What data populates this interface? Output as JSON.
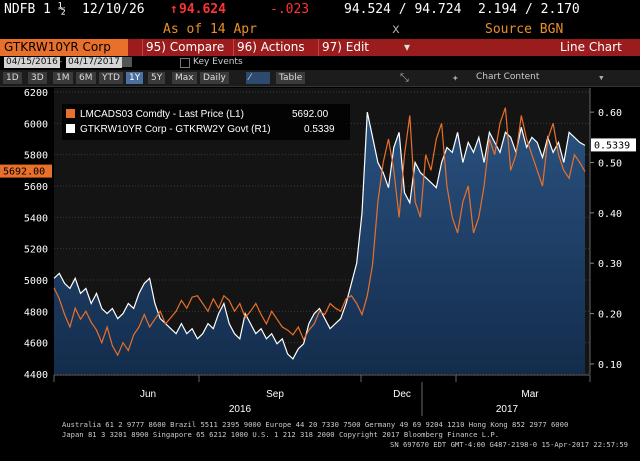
{
  "header": {
    "ticker": "NDFB 1",
    "fraction": "½",
    "date": "12/10/26",
    "arrow_glyph": "↑",
    "last_price": "94.624",
    "change": "-.023",
    "as_of": "As of 14 Apr",
    "bid_ask": "94.524 / 94.724",
    "x_label": "x",
    "yield_pair": "2.194 / 2.170",
    "source": "Source BGN"
  },
  "toolbar": {
    "security": "GTKRW10YR Corp",
    "compare": "95) Compare",
    "actions": "96) Actions",
    "edit": "97) Edit",
    "chart_type": "Line Chart"
  },
  "date_range": {
    "start": "04/15/2016",
    "end": "04/17/2017",
    "key_events": "Key Events"
  },
  "period_buttons": [
    "1D",
    "3D",
    "1M",
    "6M",
    "YTD",
    "1Y",
    "5Y",
    "Max"
  ],
  "selected_period": "1Y",
  "frequency": "Daily",
  "table_label": "Table",
  "chart_content_label": "Chart Content",
  "chart_data": {
    "type": "line",
    "x_start": "2016-04-15",
    "x_end": "2017-04-17",
    "series": [
      {
        "name": "LMCADS03 Comdty - Last Price (L1)",
        "axis": "left",
        "color": "#e8702a",
        "last_value": "5692.00",
        "values": [
          4950,
          4880,
          4780,
          4700,
          4820,
          4750,
          4800,
          4730,
          4680,
          4600,
          4700,
          4580,
          4520,
          4600,
          4550,
          4650,
          4700,
          4780,
          4700,
          4750,
          4800,
          4720,
          4760,
          4800,
          4870,
          4820,
          4890,
          4900,
          4850,
          4800,
          4880,
          4820,
          4900,
          4870,
          4800,
          4850,
          4760,
          4800,
          4850,
          4780,
          4720,
          4800,
          4750,
          4700,
          4680,
          4650,
          4700,
          4620,
          4680,
          4720,
          4800,
          4780,
          4850,
          4820,
          4800,
          4880,
          4900,
          4850,
          4780,
          4900,
          5100,
          5500,
          5750,
          5900,
          5700,
          5400,
          5800,
          6050,
          5500,
          5400,
          5800,
          5700,
          5900,
          6000,
          5600,
          5400,
          5300,
          5500,
          5600,
          5300,
          5400,
          5600,
          5900,
          5800,
          6000,
          6100,
          5700,
          5800,
          6050,
          5900,
          5800,
          5700,
          5600,
          5900,
          6000,
          5800,
          5700,
          5650,
          5800,
          5750,
          5692
        ],
        "label_value": "5692.00"
      },
      {
        "name": "GTKRW10YR Corp - GTKRW2Y Govt (R1)",
        "axis": "right",
        "color": "#ffffff",
        "last_value": "0.5339",
        "values": [
          0.27,
          0.28,
          0.26,
          0.25,
          0.27,
          0.24,
          0.25,
          0.22,
          0.24,
          0.21,
          0.2,
          0.21,
          0.19,
          0.2,
          0.22,
          0.21,
          0.24,
          0.26,
          0.27,
          0.22,
          0.19,
          0.18,
          0.17,
          0.16,
          0.18,
          0.16,
          0.17,
          0.15,
          0.16,
          0.18,
          0.17,
          0.2,
          0.22,
          0.18,
          0.16,
          0.15,
          0.2,
          0.18,
          0.16,
          0.17,
          0.15,
          0.16,
          0.14,
          0.15,
          0.12,
          0.11,
          0.13,
          0.14,
          0.18,
          0.2,
          0.21,
          0.19,
          0.17,
          0.18,
          0.19,
          0.22,
          0.26,
          0.3,
          0.4,
          0.6,
          0.55,
          0.5,
          0.48,
          0.45,
          0.53,
          0.56,
          0.44,
          0.42,
          0.5,
          0.48,
          0.47,
          0.46,
          0.45,
          0.5,
          0.53,
          0.52,
          0.56,
          0.5,
          0.54,
          0.52,
          0.55,
          0.5,
          0.56,
          0.54,
          0.52,
          0.56,
          0.55,
          0.52,
          0.57,
          0.53,
          0.55,
          0.54,
          0.51,
          0.55,
          0.52,
          0.54,
          0.5,
          0.56,
          0.55,
          0.54,
          0.5339
        ],
        "label_value": "0.5339"
      }
    ],
    "y_left": {
      "min": 4400,
      "max": 6200,
      "ticks": [
        "6200",
        "6000",
        "5800",
        "5600",
        "5400",
        "5200",
        "5000",
        "4800",
        "4600",
        "4400"
      ]
    },
    "y_right": {
      "min": 0.08,
      "max": 0.64,
      "ticks": [
        "0.60",
        "0.50",
        "0.40",
        "0.30",
        "0.20",
        "0.10"
      ]
    },
    "x_tick_labels": [
      "Jun",
      "Sep",
      "Dec",
      "Mar"
    ],
    "x_year_labels": [
      "2016",
      "2017"
    ],
    "grid": true,
    "legend_position": "top-left"
  },
  "footer": {
    "line1": "Australia 61 2 9777 8600 Brazil 5511 2395 9000 Europe 44 20 7330 7500 Germany 49 69 9204 1210 Hong Kong 852 2977 6000",
    "line2": "Japan 81 3 3201 8900        Singapore 65 6212 1000       U.S. 1 212 318 2000        Copyright 2017 Bloomberg Finance L.P.",
    "line3": "SN 697670 EDT  GMT-4:00 G487-2198-0 15-Apr-2017 22:57:59"
  },
  "colors": {
    "accent_red": "#9b1c1c",
    "price_orange": "#e8702a",
    "positive_red": "#ff3333",
    "area_fill": "#1d3d63"
  }
}
